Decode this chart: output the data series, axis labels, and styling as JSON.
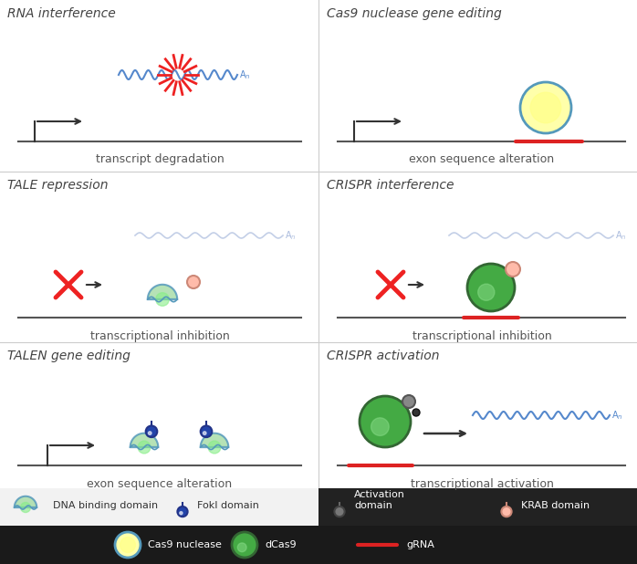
{
  "bg_color": "#ffffff",
  "panel_titles": {
    "rna_interference": "RNA interference",
    "cas9_gene_editing": "Cas9 nuclease gene editing",
    "tale_repression": "TALE repression",
    "crispr_interference": "CRISPR interference",
    "talen_gene_editing": "TALEN gene editing",
    "crispr_activation": "CRISPR activation"
  },
  "panel_subtitles": {
    "rna_interference": "transcript degradation",
    "cas9_gene_editing": "exon sequence alteration",
    "tale_repression": "transcriptional inhibition",
    "crispr_interference": "transcriptional inhibition",
    "talen_gene_editing": "exon sequence alteration",
    "crispr_activation": "transcriptional activation"
  },
  "colors": {
    "bg_color": "#ffffff",
    "dna_line": "#555555",
    "arrow": "#333333",
    "wavy_blue": "#5588cc",
    "wavy_faded": "#aabbdd",
    "red_x": "#ee2222",
    "grna_red": "#dd2222",
    "dna_binding_fill": "#aaddaa",
    "dna_binding_stroke": "#5599bb",
    "fokl_dark": "#223388",
    "fokl_ball": "#2244aa",
    "cas9_fill": "#ffffaa",
    "cas9_stroke": "#5599bb",
    "dcas9_fill": "#44aa44",
    "dcas9_stroke": "#336633",
    "krab_fill": "#ffbbaa",
    "krab_stroke": "#cc8877",
    "title_color": "#444444",
    "subtitle_color": "#555555",
    "legend_bg_left": "#f2f2f2",
    "legend_bg_right": "#222222",
    "bottom_bg": "#1a1a1a"
  }
}
